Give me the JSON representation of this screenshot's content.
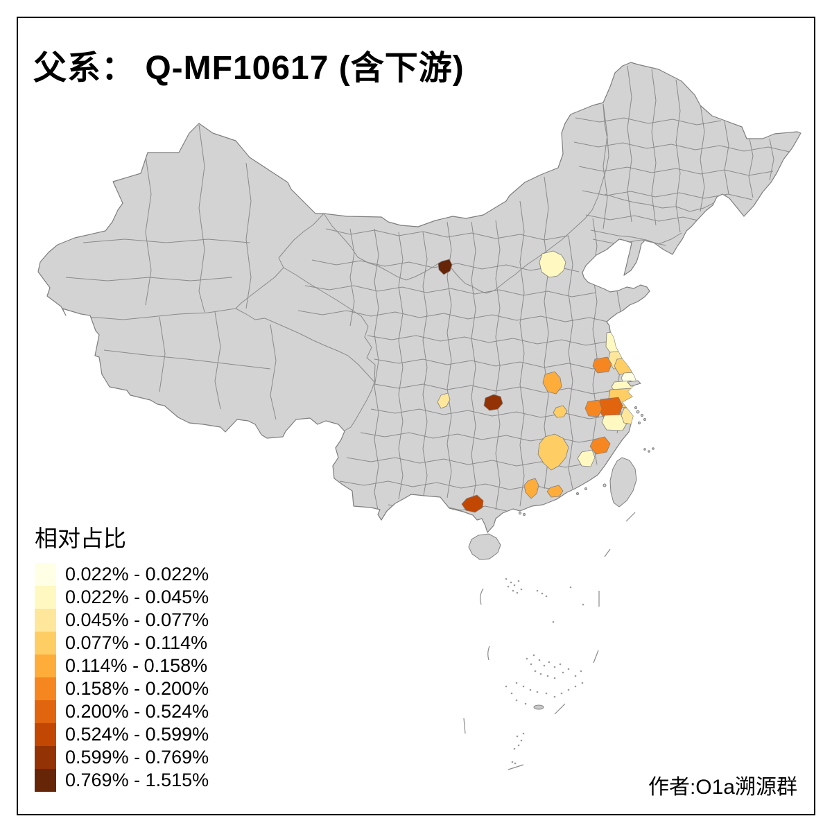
{
  "title": "父系： Q-MF10617 (含下游)",
  "legend": {
    "title": "相对占比",
    "classes": [
      {
        "label": "0.022% - 0.022%",
        "color": "#FFFFE5"
      },
      {
        "label": "0.022% - 0.045%",
        "color": "#FFF8C1"
      },
      {
        "label": "0.045% - 0.077%",
        "color": "#FEE79B"
      },
      {
        "label": "0.077% - 0.114%",
        "color": "#FECE65"
      },
      {
        "label": "0.114% - 0.158%",
        "color": "#FEAC3A"
      },
      {
        "label": "0.158% - 0.200%",
        "color": "#F68720"
      },
      {
        "label": "0.200% - 0.524%",
        "color": "#E1640E"
      },
      {
        "label": "0.524% - 0.599%",
        "color": "#C14703"
      },
      {
        "label": "0.599% - 0.769%",
        "color": "#933204"
      },
      {
        "label": "0.769% - 1.515%",
        "color": "#662506"
      }
    ]
  },
  "attribution": "作者:O1a溯源群",
  "map": {
    "land_color": "#D3D3D3",
    "border_color": "#7E7E7E",
    "mesh_color": "#8A8A8A",
    "background": "#FFFFFF",
    "frame_color": "#000000",
    "regions": [
      {
        "name": "beijing",
        "class": 2
      },
      {
        "name": "shizuishan",
        "class": 10
      },
      {
        "name": "mianyang",
        "class": 3
      },
      {
        "name": "shennongjia",
        "class": 9
      },
      {
        "name": "xiangyang",
        "class": 5
      },
      {
        "name": "wuhan",
        "class": 4
      },
      {
        "name": "jian",
        "class": 4
      },
      {
        "name": "yancheng-north",
        "class": 2
      },
      {
        "name": "yancheng-south",
        "class": 3
      },
      {
        "name": "huaian",
        "class": 6
      },
      {
        "name": "yangzhou",
        "class": 4
      },
      {
        "name": "nantong",
        "class": 1
      },
      {
        "name": "suzhou",
        "class": 2
      },
      {
        "name": "jiaxing",
        "class": 4
      },
      {
        "name": "hangzhou",
        "class": 7
      },
      {
        "name": "huzhou",
        "class": 6
      },
      {
        "name": "shaoxing",
        "class": 2
      },
      {
        "name": "taizhou-zj",
        "class": 3
      },
      {
        "name": "ningde",
        "class": 6
      },
      {
        "name": "nanping",
        "class": 2
      },
      {
        "name": "qingyuan",
        "class": 5
      },
      {
        "name": "meizhou",
        "class": 5
      },
      {
        "name": "guigang",
        "class": 8
      }
    ]
  }
}
